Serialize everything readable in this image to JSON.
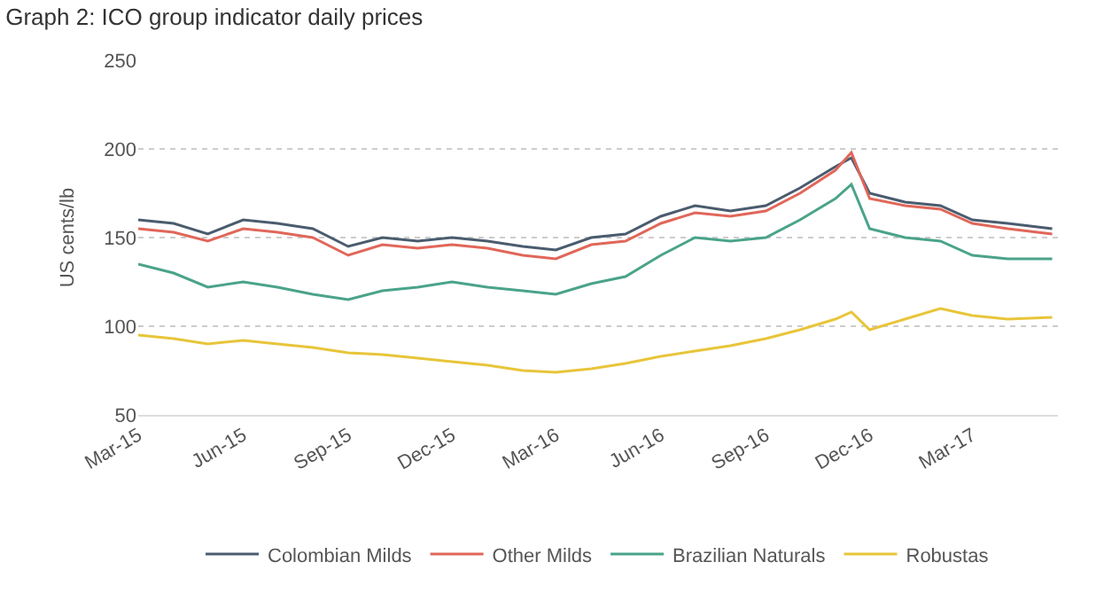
{
  "chart_data": {
    "type": "line",
    "title": "Graph 2: ICO group indicator daily prices",
    "ylabel": "US cents/lb",
    "x": [
      "2015-03-01",
      "2015-04-01",
      "2015-05-01",
      "2015-06-01",
      "2015-07-01",
      "2015-08-01",
      "2015-09-01",
      "2015-10-01",
      "2015-11-01",
      "2015-12-01",
      "2016-01-01",
      "2016-02-01",
      "2016-03-01",
      "2016-04-01",
      "2016-05-01",
      "2016-06-01",
      "2016-07-01",
      "2016-08-01",
      "2016-09-01",
      "2016-10-01",
      "2016-11-01",
      "2016-11-15",
      "2016-12-01",
      "2017-01-01",
      "2017-02-01",
      "2017-03-01",
      "2017-04-01",
      "2017-05-10"
    ],
    "series": [
      {
        "name": "Colombian Milds",
        "color": "#4a5c6e",
        "values": [
          160,
          158,
          152,
          160,
          158,
          155,
          145,
          150,
          148,
          150,
          148,
          145,
          143,
          150,
          152,
          162,
          168,
          165,
          168,
          178,
          190,
          195,
          175,
          170,
          168,
          160,
          158,
          155
        ]
      },
      {
        "name": "Other Milds",
        "color": "#e0675a",
        "values": [
          155,
          153,
          148,
          155,
          153,
          150,
          140,
          146,
          144,
          146,
          144,
          140,
          138,
          146,
          148,
          158,
          164,
          162,
          165,
          175,
          188,
          198,
          172,
          168,
          166,
          158,
          155,
          152
        ]
      },
      {
        "name": "Brazilian Naturals",
        "color": "#4aa38a",
        "values": [
          135,
          130,
          122,
          125,
          122,
          118,
          115,
          120,
          122,
          125,
          122,
          120,
          118,
          124,
          128,
          140,
          150,
          148,
          150,
          160,
          172,
          180,
          155,
          150,
          148,
          140,
          138,
          138
        ]
      },
      {
        "name": "Robustas",
        "color": "#e8c53a",
        "values": [
          95,
          93,
          90,
          92,
          90,
          88,
          85,
          84,
          82,
          80,
          78,
          75,
          74,
          76,
          79,
          83,
          86,
          89,
          93,
          98,
          104,
          108,
          98,
          104,
          110,
          106,
          104,
          105
        ]
      }
    ],
    "xlim": [
      "2015-03-01",
      "2017-05-15"
    ],
    "xticks": [
      {
        "value": "2015-03-01",
        "label": "Mar-15"
      },
      {
        "value": "2015-06-01",
        "label": "Jun-15"
      },
      {
        "value": "2015-09-01",
        "label": "Sep-15"
      },
      {
        "value": "2015-12-01",
        "label": "Dec-15"
      },
      {
        "value": "2016-03-01",
        "label": "Mar-16"
      },
      {
        "value": "2016-06-01",
        "label": "Jun-16"
      },
      {
        "value": "2016-09-01",
        "label": "Sep-16"
      },
      {
        "value": "2016-12-01",
        "label": "Dec-16"
      },
      {
        "value": "2017-03-01",
        "label": "Mar-17"
      }
    ],
    "ylim": [
      50,
      250
    ],
    "yticks": [
      50,
      100,
      150,
      200,
      250
    ],
    "grid": "y",
    "legend": "bottom",
    "marker": "none",
    "line_style": "solid"
  }
}
